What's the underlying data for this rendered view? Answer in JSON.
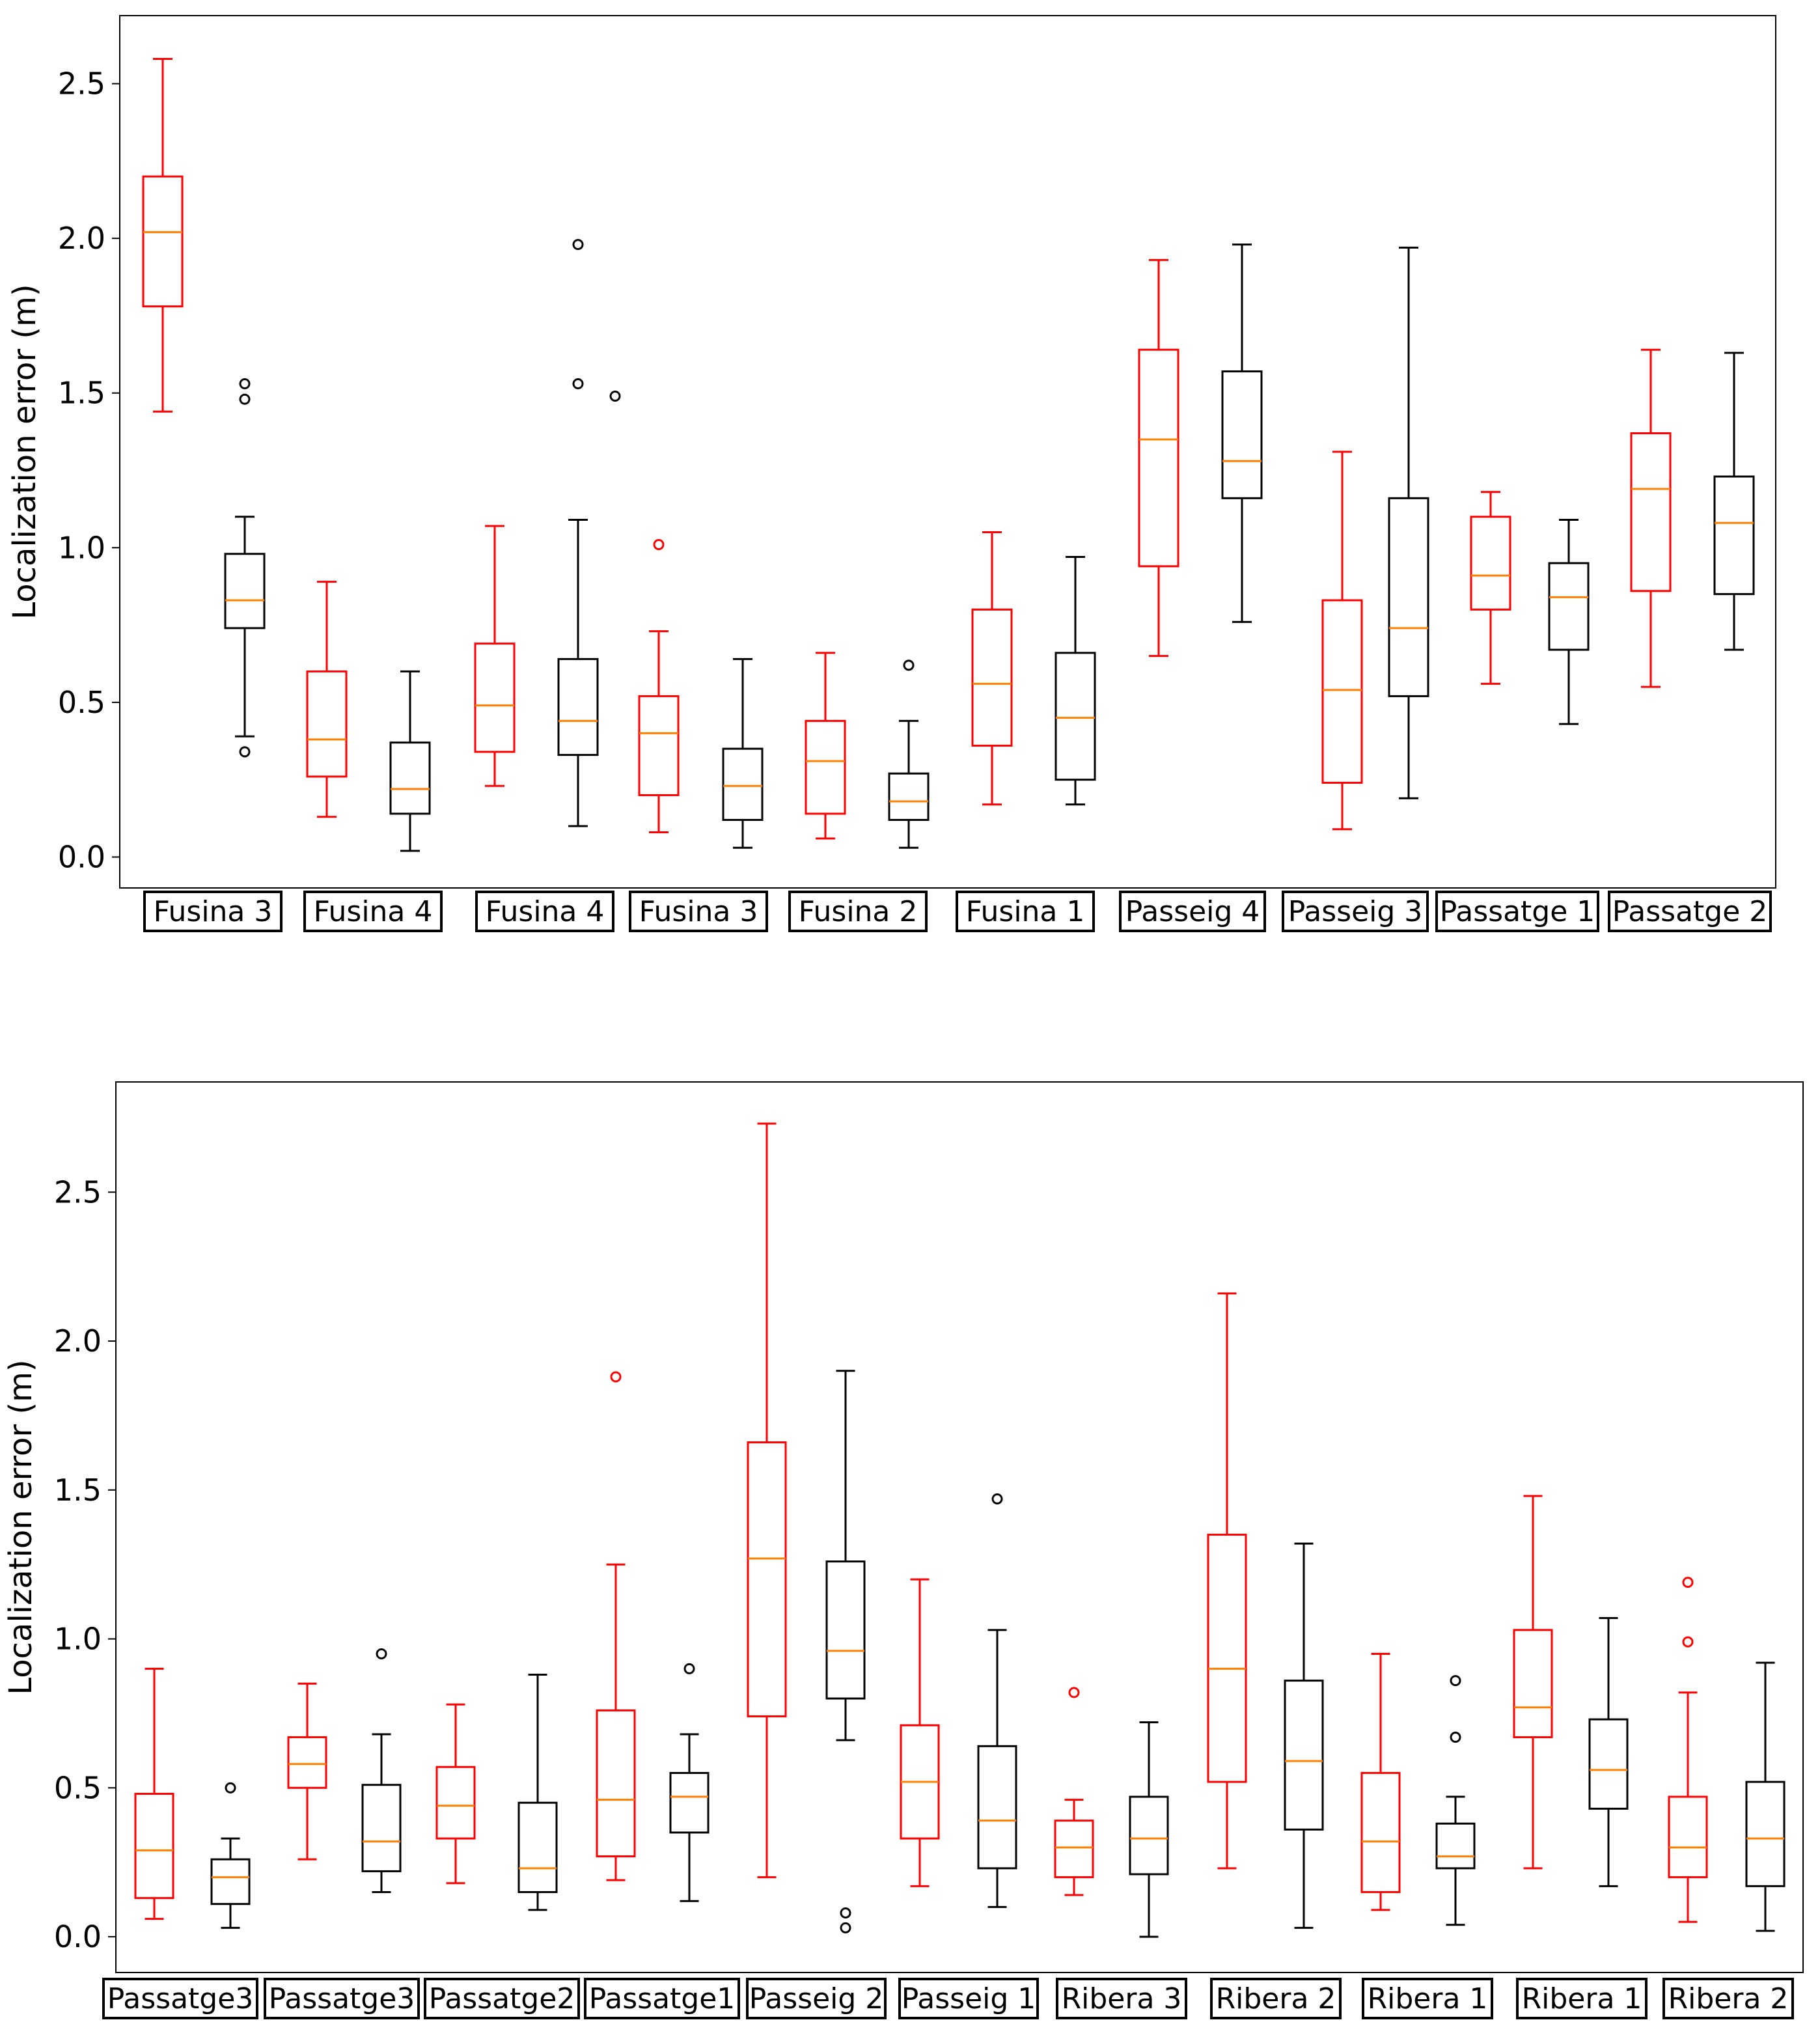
{
  "colors": {
    "red_box": "#ff0000",
    "black_box": "#000000",
    "median": "#ff8000",
    "frame": "#000000"
  },
  "chart_data": [
    {
      "type": "box",
      "ylabel": "Localization error (m)",
      "ylim": [
        -0.1,
        2.72
      ],
      "yticks": [
        0.0,
        0.5,
        1.0,
        1.5,
        2.0,
        2.5
      ],
      "ytick_labels": [
        "0.0",
        "0.5",
        "1.0",
        "1.5",
        "2.0",
        "2.5"
      ],
      "grid": false,
      "group_labels": [
        "Fusina 3",
        "Fusina 4",
        "Fusina 4",
        "Fusina 3",
        "Fusina 2",
        "Fusina 1",
        "Passeig 4",
        "Passeig 3",
        "Passatge 1",
        "Passatge 2"
      ],
      "boxes": [
        {
          "color": "red",
          "whisker_low": 1.44,
          "q1": 1.78,
          "median": 2.02,
          "q3": 2.2,
          "whisker_high": 2.58,
          "outliers": []
        },
        {
          "color": "black",
          "whisker_low": 0.39,
          "q1": 0.74,
          "median": 0.83,
          "q3": 0.98,
          "whisker_high": 1.1,
          "outliers": [
            0.34,
            1.48,
            1.53
          ]
        },
        {
          "color": "red",
          "whisker_low": 0.13,
          "q1": 0.26,
          "median": 0.38,
          "q3": 0.6,
          "whisker_high": 0.89,
          "outliers": []
        },
        {
          "color": "black",
          "whisker_low": 0.02,
          "q1": 0.14,
          "median": 0.22,
          "q3": 0.37,
          "whisker_high": 0.6,
          "outliers": []
        },
        {
          "color": "red",
          "whisker_low": 0.23,
          "q1": 0.34,
          "median": 0.49,
          "q3": 0.69,
          "whisker_high": 1.07,
          "outliers": []
        },
        {
          "color": "black",
          "whisker_low": 0.1,
          "q1": 0.33,
          "median": 0.44,
          "q3": 0.64,
          "whisker_high": 1.09,
          "outliers": [
            1.53,
            1.98
          ]
        },
        {
          "color": "black",
          "whisker_low": 0.0,
          "q1": 0.0,
          "median": 0.0,
          "q3": 0.0,
          "whisker_high": 0.0,
          "outliers": [
            1.49
          ],
          "outliers_only": true
        },
        {
          "color": "red",
          "whisker_low": 0.08,
          "q1": 0.2,
          "median": 0.4,
          "q3": 0.52,
          "whisker_high": 0.73,
          "outliers": [
            1.01
          ]
        },
        {
          "color": "black",
          "whisker_low": 0.03,
          "q1": 0.12,
          "median": 0.23,
          "q3": 0.35,
          "whisker_high": 0.64,
          "outliers": []
        },
        {
          "color": "red",
          "whisker_low": 0.06,
          "q1": 0.14,
          "median": 0.31,
          "q3": 0.44,
          "whisker_high": 0.66,
          "outliers": []
        },
        {
          "color": "black",
          "whisker_low": 0.03,
          "q1": 0.12,
          "median": 0.18,
          "q3": 0.27,
          "whisker_high": 0.44,
          "outliers": [
            0.62
          ]
        },
        {
          "color": "red",
          "whisker_low": 0.17,
          "q1": 0.36,
          "median": 0.56,
          "q3": 0.8,
          "whisker_high": 1.05,
          "outliers": []
        },
        {
          "color": "black",
          "whisker_low": 0.17,
          "q1": 0.25,
          "median": 0.45,
          "q3": 0.66,
          "whisker_high": 0.97,
          "outliers": []
        },
        {
          "color": "red",
          "whisker_low": 0.65,
          "q1": 0.94,
          "median": 1.35,
          "q3": 1.64,
          "whisker_high": 1.93,
          "outliers": []
        },
        {
          "color": "black",
          "whisker_low": 0.76,
          "q1": 1.16,
          "median": 1.28,
          "q3": 1.57,
          "whisker_high": 1.98,
          "outliers": []
        },
        {
          "color": "red",
          "whisker_low": 0.09,
          "q1": 0.24,
          "median": 0.54,
          "q3": 0.83,
          "whisker_high": 1.31,
          "outliers": []
        },
        {
          "color": "black",
          "whisker_low": 0.19,
          "q1": 0.52,
          "median": 0.74,
          "q3": 1.16,
          "whisker_high": 1.97,
          "outliers": []
        },
        {
          "color": "red",
          "whisker_low": 0.56,
          "q1": 0.8,
          "median": 0.91,
          "q3": 1.1,
          "whisker_high": 1.18,
          "outliers": []
        },
        {
          "color": "black",
          "whisker_low": 0.43,
          "q1": 0.67,
          "median": 0.84,
          "q3": 0.95,
          "whisker_high": 1.09,
          "outliers": []
        },
        {
          "color": "red",
          "whisker_low": 0.55,
          "q1": 0.86,
          "median": 1.19,
          "q3": 1.37,
          "whisker_high": 1.64,
          "outliers": []
        },
        {
          "color": "black",
          "whisker_low": 0.67,
          "q1": 0.85,
          "median": 1.08,
          "q3": 1.23,
          "whisker_high": 1.63,
          "outliers": []
        }
      ]
    },
    {
      "type": "box",
      "ylabel": "Localization error (m)",
      "ylim": [
        -0.12,
        2.87
      ],
      "yticks": [
        0.0,
        0.5,
        1.0,
        1.5,
        2.0,
        2.5
      ],
      "ytick_labels": [
        "0.0",
        "0.5",
        "1.0",
        "1.5",
        "2.0",
        "2.5"
      ],
      "grid": false,
      "group_labels": [
        "Passatge3",
        "Passatge3",
        "Passatge2",
        "Passatge1",
        "Passeig 2",
        "Passeig 1",
        "Ribera 3",
        "Ribera 2",
        "Ribera 1",
        "Ribera 1",
        "Ribera 2"
      ],
      "boxes": [
        {
          "color": "red",
          "whisker_low": 0.06,
          "q1": 0.13,
          "median": 0.29,
          "q3": 0.48,
          "whisker_high": 0.9,
          "outliers": []
        },
        {
          "color": "black",
          "whisker_low": 0.03,
          "q1": 0.11,
          "median": 0.2,
          "q3": 0.26,
          "whisker_high": 0.33,
          "outliers": [
            0.5
          ]
        },
        {
          "color": "red",
          "whisker_low": 0.26,
          "q1": 0.5,
          "median": 0.58,
          "q3": 0.67,
          "whisker_high": 0.85,
          "outliers": []
        },
        {
          "color": "black",
          "whisker_low": 0.15,
          "q1": 0.22,
          "median": 0.32,
          "q3": 0.51,
          "whisker_high": 0.68,
          "outliers": [
            0.95
          ]
        },
        {
          "color": "red",
          "whisker_low": 0.18,
          "q1": 0.33,
          "median": 0.44,
          "q3": 0.57,
          "whisker_high": 0.78,
          "outliers": []
        },
        {
          "color": "black",
          "whisker_low": 0.09,
          "q1": 0.15,
          "median": 0.23,
          "q3": 0.45,
          "whisker_high": 0.88,
          "outliers": []
        },
        {
          "color": "red",
          "whisker_low": 0.19,
          "q1": 0.27,
          "median": 0.46,
          "q3": 0.76,
          "whisker_high": 1.25,
          "outliers": [
            1.88
          ]
        },
        {
          "color": "black",
          "whisker_low": 0.12,
          "q1": 0.35,
          "median": 0.47,
          "q3": 0.55,
          "whisker_high": 0.68,
          "outliers": [
            0.9
          ]
        },
        {
          "color": "red",
          "whisker_low": 0.2,
          "q1": 0.74,
          "median": 1.27,
          "q3": 1.66,
          "whisker_high": 2.73,
          "outliers": []
        },
        {
          "color": "black",
          "whisker_low": 0.66,
          "q1": 0.8,
          "median": 0.96,
          "q3": 1.26,
          "whisker_high": 1.9,
          "outliers": [
            0.03,
            0.08
          ]
        },
        {
          "color": "red",
          "whisker_low": 0.17,
          "q1": 0.33,
          "median": 0.52,
          "q3": 0.71,
          "whisker_high": 1.2,
          "outliers": []
        },
        {
          "color": "black",
          "whisker_low": 0.1,
          "q1": 0.23,
          "median": 0.39,
          "q3": 0.64,
          "whisker_high": 1.03,
          "outliers": [
            1.47
          ]
        },
        {
          "color": "red",
          "whisker_low": 0.14,
          "q1": 0.2,
          "median": 0.3,
          "q3": 0.39,
          "whisker_high": 0.46,
          "outliers": [
            0.82
          ]
        },
        {
          "color": "black",
          "whisker_low": 0.0,
          "q1": 0.21,
          "median": 0.33,
          "q3": 0.47,
          "whisker_high": 0.72,
          "outliers": []
        },
        {
          "color": "red",
          "whisker_low": 0.23,
          "q1": 0.52,
          "median": 0.9,
          "q3": 1.35,
          "whisker_high": 2.16,
          "outliers": []
        },
        {
          "color": "black",
          "whisker_low": 0.03,
          "q1": 0.36,
          "median": 0.59,
          "q3": 0.86,
          "whisker_high": 1.32,
          "outliers": []
        },
        {
          "color": "red",
          "whisker_low": 0.09,
          "q1": 0.15,
          "median": 0.32,
          "q3": 0.55,
          "whisker_high": 0.95,
          "outliers": []
        },
        {
          "color": "black",
          "whisker_low": 0.04,
          "q1": 0.23,
          "median": 0.27,
          "q3": 0.38,
          "whisker_high": 0.47,
          "outliers": [
            0.67,
            0.86
          ]
        },
        {
          "color": "red",
          "whisker_low": 0.23,
          "q1": 0.67,
          "median": 0.77,
          "q3": 1.03,
          "whisker_high": 1.48,
          "outliers": []
        },
        {
          "color": "black",
          "whisker_low": 0.17,
          "q1": 0.43,
          "median": 0.56,
          "q3": 0.73,
          "whisker_high": 1.07,
          "outliers": []
        },
        {
          "color": "red",
          "whisker_low": 0.05,
          "q1": 0.2,
          "median": 0.3,
          "q3": 0.47,
          "whisker_high": 0.82,
          "outliers": [
            0.99,
            1.19
          ]
        },
        {
          "color": "black",
          "whisker_low": 0.02,
          "q1": 0.17,
          "median": 0.33,
          "q3": 0.52,
          "whisker_high": 0.92,
          "outliers": []
        }
      ]
    }
  ]
}
